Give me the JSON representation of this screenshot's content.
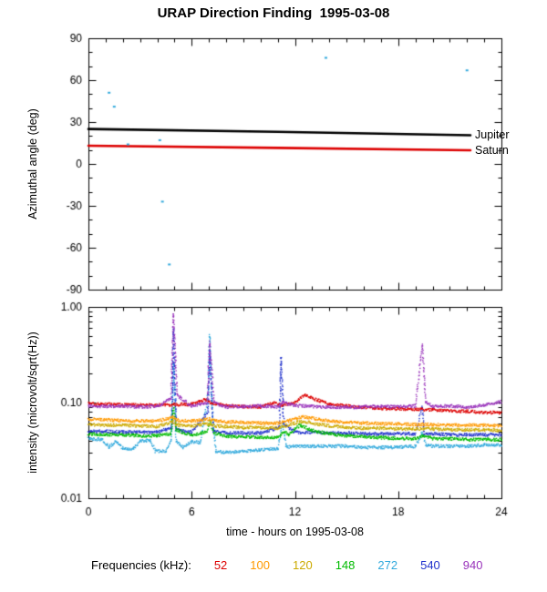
{
  "title": "URAP Direction Finding  1995-03-08",
  "chart_data": [
    {
      "panel": "azimuth",
      "type": "line",
      "ylabel": "Azimuthal angle (deg)",
      "ylim": [
        -90,
        90
      ],
      "xlim": [
        0,
        24
      ],
      "yticks": {
        "values": [
          90,
          60,
          30,
          0,
          -30,
          -60,
          -90
        ],
        "labels": [
          "90",
          "60",
          "30",
          "0",
          "-30",
          "-60",
          "-90"
        ]
      },
      "xticks": {
        "values": [
          0,
          6,
          12,
          18,
          24
        ],
        "labels": [
          "",
          "",
          "",
          "",
          ""
        ]
      },
      "series": [
        {
          "name": "Jupiter",
          "color": "#000000",
          "points": [
            [
              0,
              25
            ],
            [
              11,
              23
            ],
            [
              22.2,
              20.5
            ]
          ]
        },
        {
          "name": "Saturn",
          "color": "#dd0000",
          "points": [
            [
              0,
              13
            ],
            [
              11,
              11.5
            ],
            [
              22.2,
              9.8
            ]
          ]
        }
      ],
      "scatter": {
        "color": "#33aadd",
        "points": [
          [
            1.2,
            51
          ],
          [
            1.5,
            41
          ],
          [
            2.3,
            14
          ],
          [
            4.15,
            17
          ],
          [
            4.3,
            -27
          ],
          [
            4.7,
            -72
          ],
          [
            13.8,
            76
          ],
          [
            22.0,
            67
          ]
        ]
      }
    },
    {
      "panel": "intensity",
      "type": "scatter",
      "ylabel": "intensity (microvolt/sqrt(Hz))",
      "xlabel": "time - hours on 1995-03-08",
      "yscale": "log",
      "ylim": [
        0.01,
        1.0
      ],
      "xlim": [
        0,
        24
      ],
      "yticks": {
        "values": [
          1,
          0.1,
          0.01
        ],
        "labels": [
          "1.00",
          "0.10",
          "0.01"
        ]
      },
      "xticks": {
        "values": [
          0,
          6,
          12,
          18,
          24
        ],
        "labels": [
          "0",
          "6",
          "12",
          "18",
          "24"
        ]
      },
      "series": [
        {
          "name": "52",
          "color": "#dd0000",
          "points": [
            [
              0,
              0.097
            ],
            [
              1,
              0.096
            ],
            [
              2,
              0.095
            ],
            [
              3,
              0.094
            ],
            [
              4,
              0.094
            ],
            [
              5,
              0.095
            ],
            [
              6,
              0.096
            ],
            [
              6.8,
              0.108
            ],
            [
              7.1,
              0.1
            ],
            [
              8,
              0.093
            ],
            [
              9,
              0.091
            ],
            [
              10,
              0.09
            ],
            [
              10.7,
              0.099
            ],
            [
              11.2,
              0.094
            ],
            [
              12,
              0.1
            ],
            [
              12.6,
              0.121
            ],
            [
              13.3,
              0.106
            ],
            [
              14,
              0.097
            ],
            [
              15,
              0.092
            ],
            [
              16,
              0.089
            ],
            [
              17,
              0.087
            ],
            [
              18,
              0.086
            ],
            [
              19,
              0.085
            ],
            [
              20,
              0.084
            ],
            [
              21,
              0.082
            ],
            [
              22,
              0.081
            ],
            [
              23,
              0.079
            ],
            [
              24,
              0.078
            ]
          ]
        },
        {
          "name": "100",
          "color": "#ff9900",
          "points": [
            [
              0,
              0.067
            ],
            [
              1,
              0.066
            ],
            [
              2,
              0.065
            ],
            [
              3,
              0.064
            ],
            [
              4,
              0.064
            ],
            [
              4.9,
              0.07
            ],
            [
              5.2,
              0.065
            ],
            [
              6,
              0.064
            ],
            [
              7,
              0.067
            ],
            [
              7.4,
              0.064
            ],
            [
              8,
              0.063
            ],
            [
              9,
              0.062
            ],
            [
              10,
              0.061
            ],
            [
              11,
              0.061
            ],
            [
              11.6,
              0.064
            ],
            [
              12.4,
              0.071
            ],
            [
              13.4,
              0.067
            ],
            [
              14,
              0.064
            ],
            [
              15,
              0.062
            ],
            [
              16,
              0.061
            ],
            [
              17,
              0.06
            ],
            [
              18,
              0.06
            ],
            [
              19,
              0.059
            ],
            [
              20,
              0.059
            ],
            [
              21,
              0.058
            ],
            [
              22,
              0.058
            ],
            [
              23,
              0.058
            ],
            [
              24,
              0.057
            ]
          ]
        },
        {
          "name": "120",
          "color": "#ccaa00",
          "points": [
            [
              0,
              0.059
            ],
            [
              1,
              0.058
            ],
            [
              2,
              0.058
            ],
            [
              3,
              0.057
            ],
            [
              4,
              0.056
            ],
            [
              4.9,
              0.063
            ],
            [
              5.2,
              0.058
            ],
            [
              6,
              0.057
            ],
            [
              7,
              0.06
            ],
            [
              7.4,
              0.057
            ],
            [
              8,
              0.056
            ],
            [
              9,
              0.055
            ],
            [
              10,
              0.055
            ],
            [
              11,
              0.054
            ],
            [
              12.4,
              0.064
            ],
            [
              13.4,
              0.059
            ],
            [
              14,
              0.057
            ],
            [
              15,
              0.055
            ],
            [
              16,
              0.054
            ],
            [
              17,
              0.054
            ],
            [
              18,
              0.053
            ],
            [
              19,
              0.053
            ],
            [
              20,
              0.053
            ],
            [
              21,
              0.052
            ],
            [
              22,
              0.052
            ],
            [
              23,
              0.052
            ],
            [
              24,
              0.051
            ]
          ]
        },
        {
          "name": "148",
          "color": "#00bb00",
          "points": [
            [
              0,
              0.047
            ],
            [
              1,
              0.046
            ],
            [
              2,
              0.046
            ],
            [
              3,
              0.045
            ],
            [
              4,
              0.045
            ],
            [
              4.8,
              0.047
            ],
            [
              4.95,
              0.092
            ],
            [
              5.1,
              0.052
            ],
            [
              6,
              0.045
            ],
            [
              6.9,
              0.05
            ],
            [
              7.05,
              0.066
            ],
            [
              7.3,
              0.048
            ],
            [
              8,
              0.044
            ],
            [
              9,
              0.044
            ],
            [
              10,
              0.043
            ],
            [
              11,
              0.043
            ],
            [
              11.4,
              0.05
            ],
            [
              11.6,
              0.046
            ],
            [
              12.3,
              0.058
            ],
            [
              13,
              0.051
            ],
            [
              14,
              0.047
            ],
            [
              15,
              0.045
            ],
            [
              16,
              0.044
            ],
            [
              17,
              0.043
            ],
            [
              18,
              0.042
            ],
            [
              19,
              0.042
            ],
            [
              19.5,
              0.045
            ],
            [
              20,
              0.042
            ],
            [
              21,
              0.042
            ],
            [
              22,
              0.041
            ],
            [
              23,
              0.041
            ],
            [
              24,
              0.041
            ]
          ]
        },
        {
          "name": "272",
          "color": "#33aadd",
          "points": [
            [
              0,
              0.042
            ],
            [
              0.8,
              0.041
            ],
            [
              1.2,
              0.034
            ],
            [
              1.6,
              0.04
            ],
            [
              2.0,
              0.033
            ],
            [
              2.6,
              0.033
            ],
            [
              3.0,
              0.04
            ],
            [
              3.6,
              0.04
            ],
            [
              3.9,
              0.031
            ],
            [
              4.5,
              0.031
            ],
            [
              4.8,
              0.04
            ],
            [
              4.95,
              0.27
            ],
            [
              5.1,
              0.04
            ],
            [
              5.5,
              0.034
            ],
            [
              6,
              0.039
            ],
            [
              6.5,
              0.038
            ],
            [
              6.95,
              0.12
            ],
            [
              7.05,
              0.5
            ],
            [
              7.2,
              0.09
            ],
            [
              7.4,
              0.031
            ],
            [
              8,
              0.03
            ],
            [
              9,
              0.031
            ],
            [
              10,
              0.032
            ],
            [
              11,
              0.033
            ],
            [
              11.3,
              0.06
            ],
            [
              11.5,
              0.034
            ],
            [
              12,
              0.035
            ],
            [
              13,
              0.035
            ],
            [
              14,
              0.035
            ],
            [
              15,
              0.035
            ],
            [
              16,
              0.034
            ],
            [
              17,
              0.034
            ],
            [
              18,
              0.034
            ],
            [
              19,
              0.035
            ],
            [
              19.4,
              0.048
            ],
            [
              19.6,
              0.036
            ],
            [
              20,
              0.035
            ],
            [
              21,
              0.035
            ],
            [
              22,
              0.035
            ],
            [
              23,
              0.036
            ],
            [
              24,
              0.036
            ]
          ]
        },
        {
          "name": "540",
          "color": "#2233cc",
          "points": [
            [
              0,
              0.05
            ],
            [
              1,
              0.05
            ],
            [
              2,
              0.049
            ],
            [
              3,
              0.049
            ],
            [
              4,
              0.049
            ],
            [
              4.85,
              0.055
            ],
            [
              4.95,
              0.6
            ],
            [
              5.1,
              0.052
            ],
            [
              6,
              0.049
            ],
            [
              6.95,
              0.08
            ],
            [
              7.05,
              0.35
            ],
            [
              7.25,
              0.05
            ],
            [
              8,
              0.048
            ],
            [
              9,
              0.048
            ],
            [
              10,
              0.048
            ],
            [
              11.1,
              0.055
            ],
            [
              11.2,
              0.3
            ],
            [
              11.35,
              0.06
            ],
            [
              12,
              0.049
            ],
            [
              13,
              0.049
            ],
            [
              14,
              0.048
            ],
            [
              15,
              0.048
            ],
            [
              16,
              0.047
            ],
            [
              17,
              0.047
            ],
            [
              18,
              0.047
            ],
            [
              19,
              0.047
            ],
            [
              19.4,
              0.09
            ],
            [
              19.5,
              0.047
            ],
            [
              20,
              0.047
            ],
            [
              21,
              0.046
            ],
            [
              22,
              0.046
            ],
            [
              23,
              0.046
            ],
            [
              24,
              0.046
            ]
          ]
        },
        {
          "name": "940",
          "color": "#9933bb",
          "points": [
            [
              0,
              0.092
            ],
            [
              1,
              0.091
            ],
            [
              2,
              0.092
            ],
            [
              3,
              0.09
            ],
            [
              4,
              0.091
            ],
            [
              4.8,
              0.11
            ],
            [
              4.95,
              0.85
            ],
            [
              5.15,
              0.12
            ],
            [
              6,
              0.091
            ],
            [
              6.9,
              0.1
            ],
            [
              7.05,
              0.43
            ],
            [
              7.3,
              0.1
            ],
            [
              8,
              0.09
            ],
            [
              9,
              0.091
            ],
            [
              10,
              0.092
            ],
            [
              11,
              0.09
            ],
            [
              11.3,
              0.1
            ],
            [
              12,
              0.093
            ],
            [
              13,
              0.091
            ],
            [
              14,
              0.09
            ],
            [
              15,
              0.089
            ],
            [
              16,
              0.09
            ],
            [
              17,
              0.091
            ],
            [
              18,
              0.09
            ],
            [
              19,
              0.092
            ],
            [
              19.4,
              0.4
            ],
            [
              19.6,
              0.1
            ],
            [
              20,
              0.091
            ],
            [
              21,
              0.092
            ],
            [
              22,
              0.09
            ],
            [
              23,
              0.094
            ],
            [
              24,
              0.102
            ]
          ]
        }
      ]
    }
  ],
  "legend": {
    "label": "Frequencies (kHz):",
    "items": [
      {
        "label": "52",
        "color": "#dd0000"
      },
      {
        "label": "100",
        "color": "#ff9900"
      },
      {
        "label": "120",
        "color": "#ccaa00"
      },
      {
        "label": "148",
        "color": "#00bb00"
      },
      {
        "label": "272",
        "color": "#33aadd"
      },
      {
        "label": "540",
        "color": "#2233cc"
      },
      {
        "label": "940",
        "color": "#9933bb"
      }
    ]
  }
}
